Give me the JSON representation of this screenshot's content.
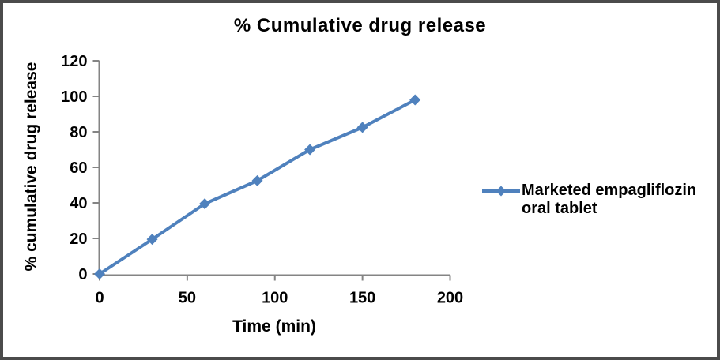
{
  "chart_data": {
    "type": "line",
    "title": "% Cumulative drug release",
    "xlabel": "Time (min)",
    "ylabel": "% cumulative drug release",
    "x": [
      0,
      30,
      60,
      90,
      120,
      150,
      180
    ],
    "series": [
      {
        "name": "Marketed empagliflozin oral tablet",
        "values": [
          0,
          19.5,
          39.5,
          52.5,
          70,
          82.5,
          98
        ],
        "color": "#4F81BD",
        "marker": "diamond",
        "line_width": 4
      }
    ],
    "xlim": [
      0,
      200
    ],
    "ylim": [
      0,
      120
    ],
    "x_ticks": [
      0,
      50,
      100,
      150,
      200
    ],
    "y_ticks": [
      0,
      20,
      40,
      60,
      80,
      100,
      120
    ],
    "grid": false,
    "legend_position": "right",
    "axis_color": "#848484",
    "text_color": "#000000",
    "background_color": "#ffffff",
    "frame_color": "#4b4b4b"
  }
}
